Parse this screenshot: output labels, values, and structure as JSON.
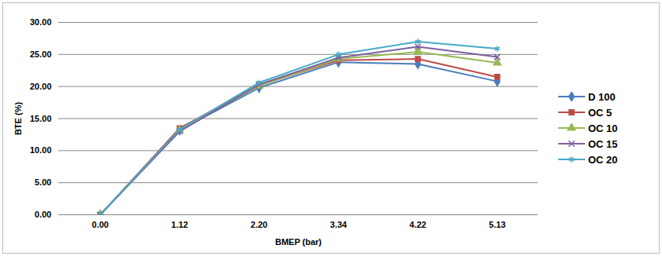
{
  "chart_data": {
    "type": "line",
    "x_label": "BMEP (bar)",
    "y_label": "BTE (%)",
    "categories": [
      "0.00",
      "1.12",
      "2.20",
      "3.34",
      "4.22",
      "5.13"
    ],
    "series": [
      {
        "name": "D 100",
        "color": "#4a7ebb",
        "marker": "diamond",
        "values": [
          0,
          13.2,
          19.8,
          23.8,
          23.5,
          20.8
        ]
      },
      {
        "name": "OC 5",
        "color": "#be4b48",
        "marker": "square",
        "values": [
          0,
          13.5,
          20.2,
          24.1,
          24.3,
          21.5
        ]
      },
      {
        "name": "OC 10",
        "color": "#98b954",
        "marker": "triangle",
        "values": [
          0,
          13.2,
          20.1,
          24.3,
          25.4,
          23.7
        ]
      },
      {
        "name": "OC 15",
        "color": "#7d60a0",
        "marker": "x",
        "values": [
          0,
          13.0,
          20.3,
          24.5,
          26.2,
          24.6
        ]
      },
      {
        "name": "OC 20",
        "color": "#46aac5",
        "marker": "asterisk",
        "values": [
          0,
          13.3,
          20.6,
          25.0,
          27.0,
          25.9
        ]
      }
    ],
    "ylim": [
      0,
      30
    ],
    "yticks": [
      {
        "value": 0,
        "label": "0.00"
      },
      {
        "value": 5,
        "label": "5.00"
      },
      {
        "value": 10,
        "label": "10.00"
      },
      {
        "value": 15,
        "label": "15.00"
      },
      {
        "value": 20,
        "label": "20.00"
      },
      {
        "value": 25,
        "label": "25.00"
      },
      {
        "value": 30,
        "label": "30.00"
      }
    ],
    "grid": true,
    "legend": "right"
  }
}
